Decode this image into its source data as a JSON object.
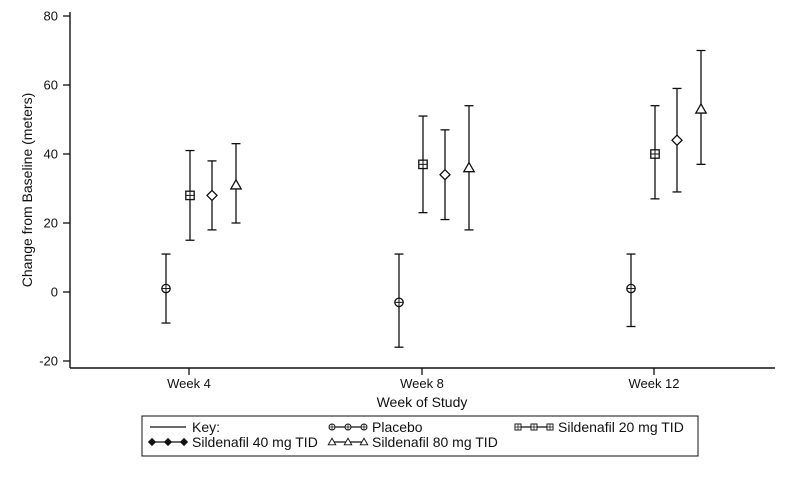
{
  "chart_data": {
    "type": "scatter",
    "title": "",
    "xlabel": "Week of Study",
    "ylabel": "Change from Baseline (meters)",
    "categories": [
      "Week 4",
      "Week 8",
      "Week 12"
    ],
    "ylim": [
      -20,
      80
    ],
    "yticks": [
      "-20",
      "0",
      "20",
      "40",
      "60",
      "80"
    ],
    "grid": false,
    "legend_placement": "bottom",
    "legend_key_label": "Key:",
    "series": [
      {
        "name": "Placebo",
        "marker": "circle-cross",
        "means": [
          1,
          -3,
          1
        ],
        "lower": [
          -9,
          -16,
          -10
        ],
        "upper": [
          11,
          11,
          11
        ]
      },
      {
        "name": "Sildenafil 20 mg TID",
        "marker": "square-cross",
        "means": [
          28,
          37,
          40
        ],
        "lower": [
          15,
          23,
          27
        ],
        "upper": [
          41,
          51,
          54
        ]
      },
      {
        "name": "Sildenafil 40 mg TID",
        "marker": "diamond",
        "means": [
          28,
          34,
          44
        ],
        "lower": [
          18,
          21,
          29
        ],
        "upper": [
          38,
          47,
          59
        ]
      },
      {
        "name": "Sildenafil 80 mg TID",
        "marker": "triangle",
        "means": [
          31,
          36,
          53
        ],
        "lower": [
          20,
          18,
          37
        ],
        "upper": [
          43,
          54,
          70
        ]
      }
    ],
    "colors": {
      "ink": "#111111",
      "background": "#ffffff"
    }
  }
}
